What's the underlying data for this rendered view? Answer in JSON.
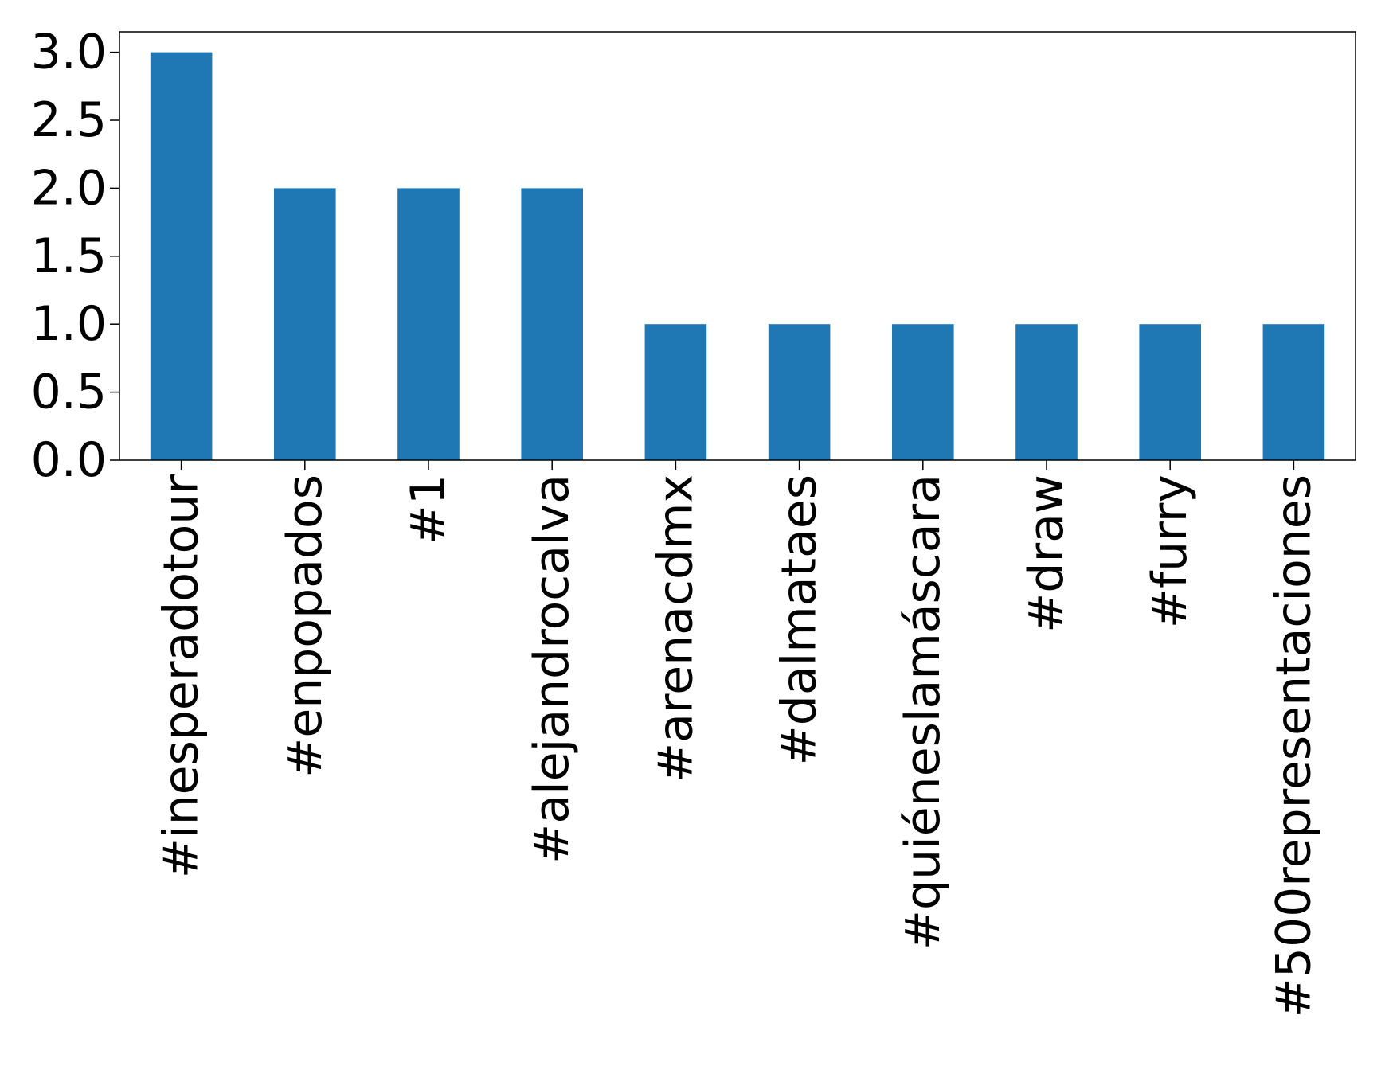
{
  "chart_data": {
    "type": "bar",
    "categories": [
      "#inesperadotour",
      "#enpopados",
      "#1",
      "#alejandrocalva",
      "#arenacdmx",
      "#dalmataes",
      "#quiéneslamáscara",
      "#draw",
      "#furry",
      "#500representaciones"
    ],
    "values": [
      3,
      2,
      2,
      2,
      1,
      1,
      1,
      1,
      1,
      1
    ],
    "ylim": [
      0,
      3.15
    ],
    "yticks": [
      0.0,
      0.5,
      1.0,
      1.5,
      2.0,
      2.5,
      3.0
    ],
    "ytick_labels": [
      "0.0",
      "0.5",
      "1.0",
      "1.5",
      "2.0",
      "2.5",
      "3.0"
    ],
    "grid": false,
    "legend": "none",
    "colors": {
      "bar": "#1f77b4",
      "axis": "#000000"
    }
  }
}
